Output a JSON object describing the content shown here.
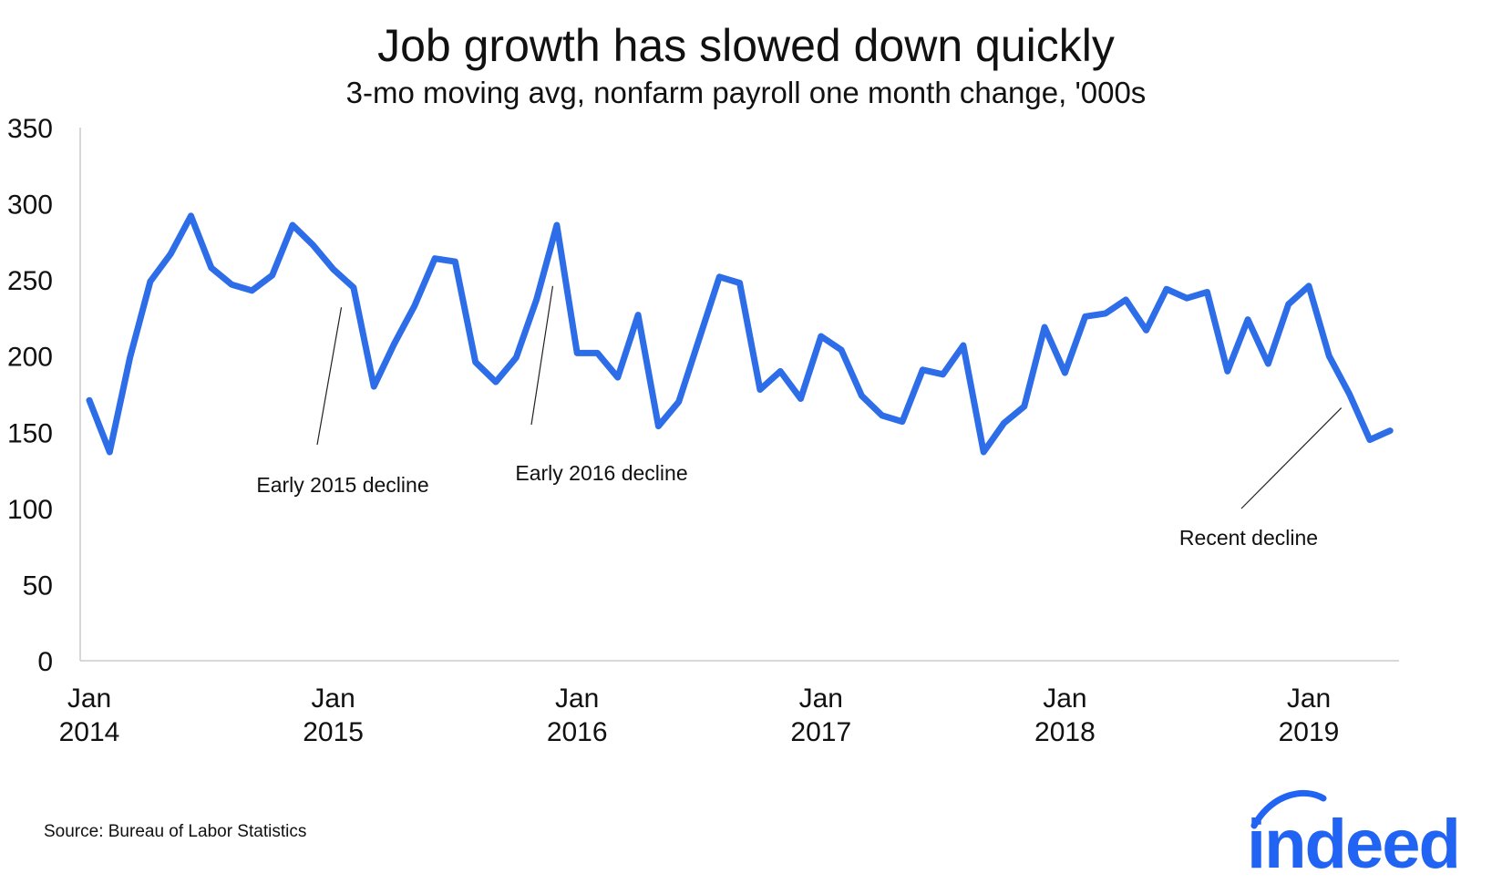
{
  "chart_data": {
    "type": "line",
    "title": "Job growth has slowed down quickly",
    "subtitle": "3-mo moving avg, nonfarm payroll one month change, '000s",
    "xlabel": "",
    "ylabel": "",
    "ylim": [
      0,
      350
    ],
    "yticks": [
      0,
      50,
      100,
      150,
      200,
      250,
      300,
      350
    ],
    "xticks": [
      {
        "month_index": 0,
        "line1": "Jan",
        "line2": "2014"
      },
      {
        "month_index": 12,
        "line1": "Jan",
        "line2": "2015"
      },
      {
        "month_index": 24,
        "line1": "Jan",
        "line2": "2016"
      },
      {
        "month_index": 36,
        "line1": "Jan",
        "line2": "2017"
      },
      {
        "month_index": 48,
        "line1": "Jan",
        "line2": "2018"
      },
      {
        "month_index": 60,
        "line1": "Jan",
        "line2": "2019"
      }
    ],
    "x_start": "2014-01",
    "x_end": "2019-05",
    "grid": false,
    "series": [
      {
        "color": "#2d6de8",
        "values": [
          171,
          137,
          199,
          249,
          267,
          292,
          258,
          247,
          243,
          253,
          286,
          273,
          257,
          245,
          180,
          208,
          233,
          264,
          262,
          196,
          183,
          199,
          237,
          286,
          202,
          202,
          186,
          227,
          154,
          170,
          211,
          252,
          248,
          178,
          190,
          172,
          213,
          204,
          174,
          161,
          157,
          191,
          188,
          207,
          137,
          156,
          167,
          219,
          189,
          226,
          228,
          237,
          217,
          244,
          238,
          242,
          190,
          224,
          195,
          234,
          246,
          200,
          175,
          145,
          151
        ]
      }
    ],
    "annotations": [
      {
        "text": "Early 2015 decline",
        "month_index": 12.4,
        "value": 232
      },
      {
        "text": "Early 2016 decline",
        "month_index": 22.8,
        "value": 246
      },
      {
        "text": "Recent decline",
        "month_index": 61.6,
        "value": 166
      }
    ]
  },
  "source_text": "Source: Bureau of Labor Statistics",
  "logo_text": "indeed",
  "colors": {
    "series": "#2d6de8",
    "axis": "#cccccc",
    "logo": "#2164f3"
  }
}
